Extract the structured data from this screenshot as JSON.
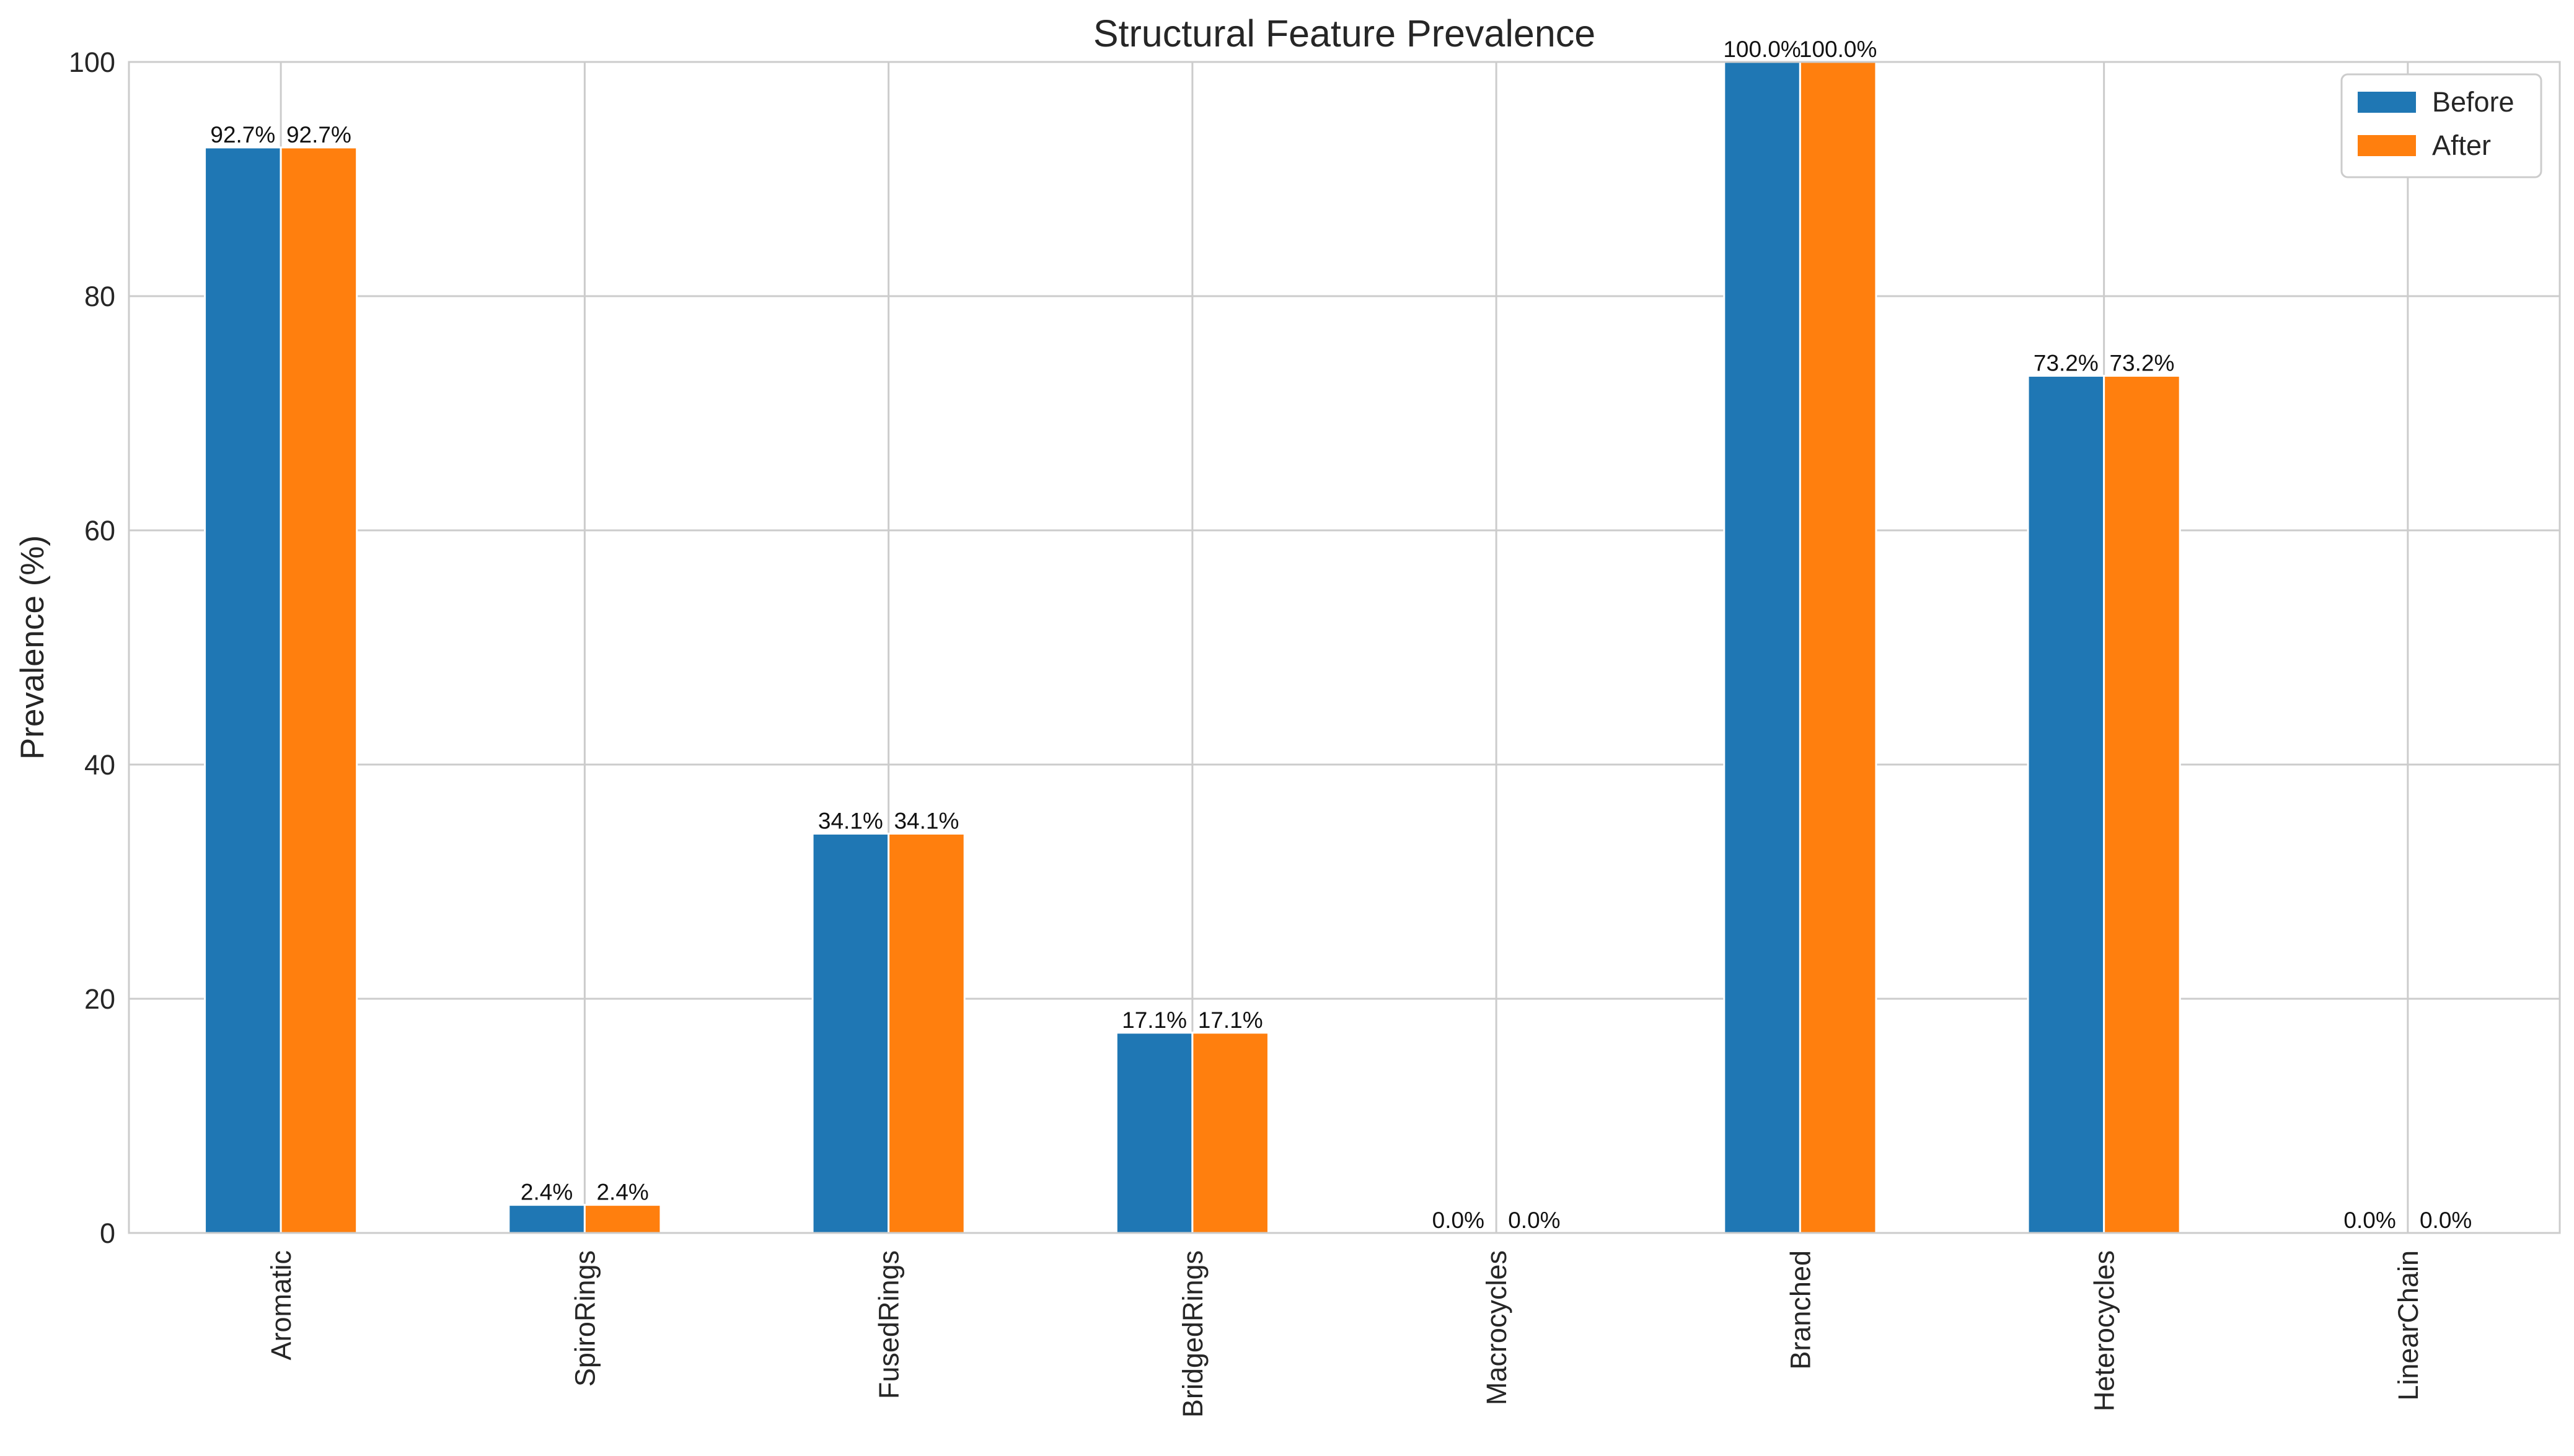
{
  "chart_data": {
    "type": "bar",
    "title": "Structural Feature Prevalence",
    "xlabel": "",
    "ylabel": "Prevalence (%)",
    "ylim": [
      0,
      100
    ],
    "yticks": [
      0,
      20,
      40,
      60,
      80,
      100
    ],
    "grid": true,
    "legend_position": "top-right",
    "categories": [
      "Aromatic",
      "SpiroRings",
      "FusedRings",
      "BridgedRings",
      "Macrocycles",
      "Branched",
      "Heterocycles",
      "LinearChain"
    ],
    "series": [
      {
        "name": "Before",
        "color": "#1f77b4",
        "values": [
          92.7,
          2.4,
          34.1,
          17.1,
          0.0,
          100.0,
          73.2,
          0.0
        ],
        "labels": [
          "92.7%",
          "2.4%",
          "34.1%",
          "17.1%",
          "0.0%",
          "100.0%",
          "73.2%",
          "0.0%"
        ]
      },
      {
        "name": "After",
        "color": "#ff7f0e",
        "values": [
          92.7,
          2.4,
          34.1,
          17.1,
          0.0,
          100.0,
          73.2,
          0.0
        ],
        "labels": [
          "92.7%",
          "2.4%",
          "34.1%",
          "17.1%",
          "0.0%",
          "100.0%",
          "73.2%",
          "0.0%"
        ]
      }
    ]
  }
}
